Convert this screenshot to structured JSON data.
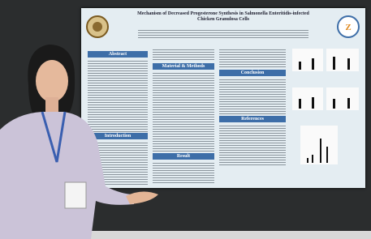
{
  "poster": {
    "title": "Mechanism of Decreased Progesterone Synthesis in Salmonella Enteritidis-infected Chicken Granulosa Cells",
    "sections": [
      "Abstract",
      "Introduction",
      "Material & Methods",
      "Result",
      "Conclusion",
      "References"
    ]
  }
}
